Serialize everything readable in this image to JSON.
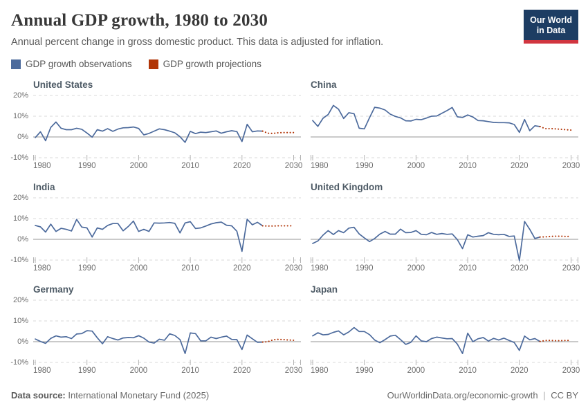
{
  "header": {
    "title": "Annual GDP growth, 1980 to 2030",
    "subtitle": "Annual percent change in gross domestic product. This data is adjusted for inflation.",
    "logo_line1": "Our World",
    "logo_line2": "in Data"
  },
  "legend": {
    "observations": "GDP growth observations",
    "projections": "GDP growth projections"
  },
  "colors": {
    "observation": "#4c6a9c",
    "projection": "#b13507",
    "grid": "#d9d9d9",
    "zero_line": "#949494",
    "tick": "#b3b3b3",
    "tick_text": "#6d6d6d",
    "logo_bg": "#1d3d63",
    "logo_stripe": "#d1353f"
  },
  "footer": {
    "source_label": "Data source:",
    "source_value": " International Monetary Fund (2025)",
    "url": "OurWorldinData.org/economic-growth",
    "separator": "|",
    "license": "CC BY"
  },
  "chart_data": {
    "type": "line",
    "title": "Annual GDP growth, 1980 to 2030",
    "ylabel": "Annual percent change in GDP",
    "x_range": [
      1980,
      2030
    ],
    "y_range": [
      -10,
      20
    ],
    "grid": "horizontal-dashed",
    "legend_position": "top",
    "x_ticks": [
      1980,
      1990,
      2000,
      2010,
      2020,
      2030
    ],
    "y_ticks": [
      {
        "value": 20,
        "label": "20%"
      },
      {
        "value": 10,
        "label": "10%"
      },
      {
        "value": 0,
        "label": "0%"
      },
      {
        "value": -10,
        "label": "-10%"
      }
    ],
    "observations_start_year": 1980,
    "projections_start_year": 2025,
    "projections_end_year": 2030,
    "facets": [
      {
        "name": "United States",
        "observations": [
          -0.3,
          2.5,
          -1.8,
          4.6,
          7.2,
          4.2,
          3.5,
          3.5,
          4.2,
          3.7,
          1.9,
          -0.1,
          3.5,
          2.8,
          4.0,
          2.7,
          3.8,
          4.4,
          4.5,
          4.8,
          4.1,
          1.0,
          1.7,
          2.8,
          3.9,
          3.5,
          2.8,
          2.0,
          0.1,
          -2.6,
          2.7,
          1.6,
          2.3,
          2.1,
          2.5,
          2.9,
          1.8,
          2.5,
          3.0,
          2.6,
          -2.2,
          6.1,
          2.5,
          2.9,
          2.8
        ],
        "projections": [
          1.8,
          1.7,
          2.0,
          2.1,
          2.1,
          2.1
        ]
      },
      {
        "name": "China",
        "observations": [
          7.9,
          5.1,
          9.0,
          10.8,
          15.2,
          13.4,
          8.9,
          11.7,
          11.2,
          4.2,
          3.9,
          9.3,
          14.3,
          13.9,
          13.0,
          11.0,
          9.9,
          9.2,
          7.8,
          7.7,
          8.5,
          8.3,
          9.1,
          10.0,
          10.1,
          11.4,
          12.7,
          14.2,
          9.7,
          9.4,
          10.6,
          9.6,
          7.9,
          7.8,
          7.4,
          7.0,
          6.9,
          6.9,
          6.8,
          6.0,
          2.2,
          8.4,
          3.0,
          5.4,
          5.0
        ],
        "projections": [
          4.0,
          4.0,
          3.9,
          3.7,
          3.5,
          3.3
        ]
      },
      {
        "name": "India",
        "observations": [
          6.7,
          6.0,
          3.5,
          7.3,
          3.8,
          5.3,
          4.8,
          4.0,
          9.6,
          5.9,
          5.5,
          1.1,
          5.5,
          4.8,
          6.7,
          7.6,
          7.6,
          4.1,
          6.2,
          8.8,
          3.8,
          4.8,
          3.8,
          7.9,
          7.8,
          7.9,
          8.1,
          7.7,
          3.1,
          7.9,
          8.5,
          5.2,
          5.5,
          6.4,
          7.4,
          8.0,
          8.3,
          6.8,
          6.5,
          3.9,
          -5.8,
          9.7,
          7.0,
          8.2,
          6.5
        ],
        "projections": [
          6.4,
          6.4,
          6.5,
          6.5,
          6.5,
          6.5
        ]
      },
      {
        "name": "United Kingdom",
        "observations": [
          -2.0,
          -0.8,
          2.0,
          4.2,
          2.3,
          4.2,
          3.2,
          5.4,
          5.8,
          2.6,
          0.7,
          -1.1,
          0.4,
          2.5,
          3.8,
          2.5,
          2.5,
          4.9,
          3.2,
          3.3,
          4.2,
          2.4,
          2.2,
          3.3,
          2.4,
          2.8,
          2.4,
          2.6,
          -0.2,
          -4.5,
          2.2,
          1.1,
          1.5,
          1.8,
          3.2,
          2.4,
          2.2,
          2.4,
          1.4,
          1.6,
          -10.3,
          8.6,
          4.8,
          0.4,
          1.1
        ],
        "projections": [
          1.2,
          1.4,
          1.5,
          1.5,
          1.4,
          1.4
        ]
      },
      {
        "name": "Germany",
        "observations": [
          1.3,
          0.1,
          -0.8,
          1.6,
          2.8,
          2.2,
          2.4,
          1.5,
          3.7,
          3.9,
          5.3,
          5.1,
          1.9,
          -1.0,
          2.4,
          1.5,
          0.8,
          1.8,
          2.0,
          1.9,
          2.9,
          1.7,
          -0.2,
          -0.7,
          1.2,
          0.7,
          3.8,
          3.0,
          1.0,
          -5.7,
          4.2,
          3.9,
          0.4,
          0.4,
          2.2,
          1.5,
          2.2,
          2.7,
          1.1,
          1.0,
          -3.8,
          3.2,
          1.4,
          -0.3,
          -0.2
        ],
        "projections": [
          0.0,
          0.9,
          1.1,
          1.0,
          0.8,
          0.7
        ]
      },
      {
        "name": "Japan",
        "observations": [
          2.8,
          4.3,
          3.3,
          3.5,
          4.5,
          5.2,
          3.3,
          4.7,
          6.8,
          4.9,
          4.9,
          3.4,
          0.8,
          -0.5,
          1.0,
          2.7,
          3.1,
          1.0,
          -1.3,
          -0.3,
          2.8,
          0.4,
          0.0,
          1.5,
          2.2,
          1.8,
          1.4,
          1.5,
          -1.2,
          -5.7,
          4.1,
          0.0,
          1.4,
          2.0,
          0.3,
          1.6,
          0.8,
          1.7,
          0.6,
          -0.4,
          -4.2,
          2.7,
          0.9,
          1.5,
          0.1
        ],
        "projections": [
          0.6,
          0.6,
          0.5,
          0.5,
          0.6,
          0.6
        ]
      }
    ]
  }
}
